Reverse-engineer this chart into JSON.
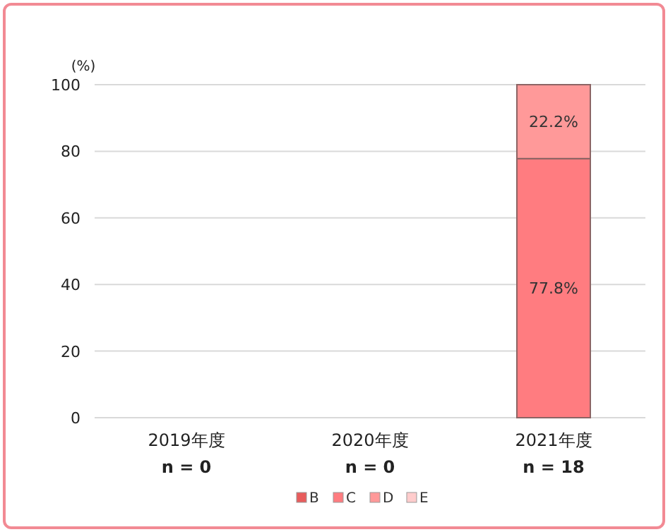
{
  "chart_data": {
    "type": "bar",
    "stacked": true,
    "ylabel": "(%)",
    "categories": [
      "2019年度\nn = 0",
      "2020年度\nn = 0",
      "2021年度\nn = 18"
    ],
    "series": [
      {
        "name": "B",
        "color": "#e85c5c",
        "values": [
          null,
          null,
          0
        ]
      },
      {
        "name": "C",
        "color": "#ff7c80",
        "values": [
          null,
          null,
          77.8
        ],
        "value_labels": [
          null,
          null,
          "77.8%"
        ]
      },
      {
        "name": "D",
        "color": "#ff9999",
        "values": [
          null,
          null,
          22.2
        ],
        "value_labels": [
          null,
          null,
          "22.2%"
        ]
      },
      {
        "name": "E",
        "color": "#ffcccc",
        "values": [
          null,
          null,
          0
        ]
      }
    ],
    "ylim": [
      0,
      100
    ],
    "yticks": [
      0,
      20,
      40,
      60,
      80,
      100
    ],
    "grid": "y",
    "legend": "bottom"
  }
}
